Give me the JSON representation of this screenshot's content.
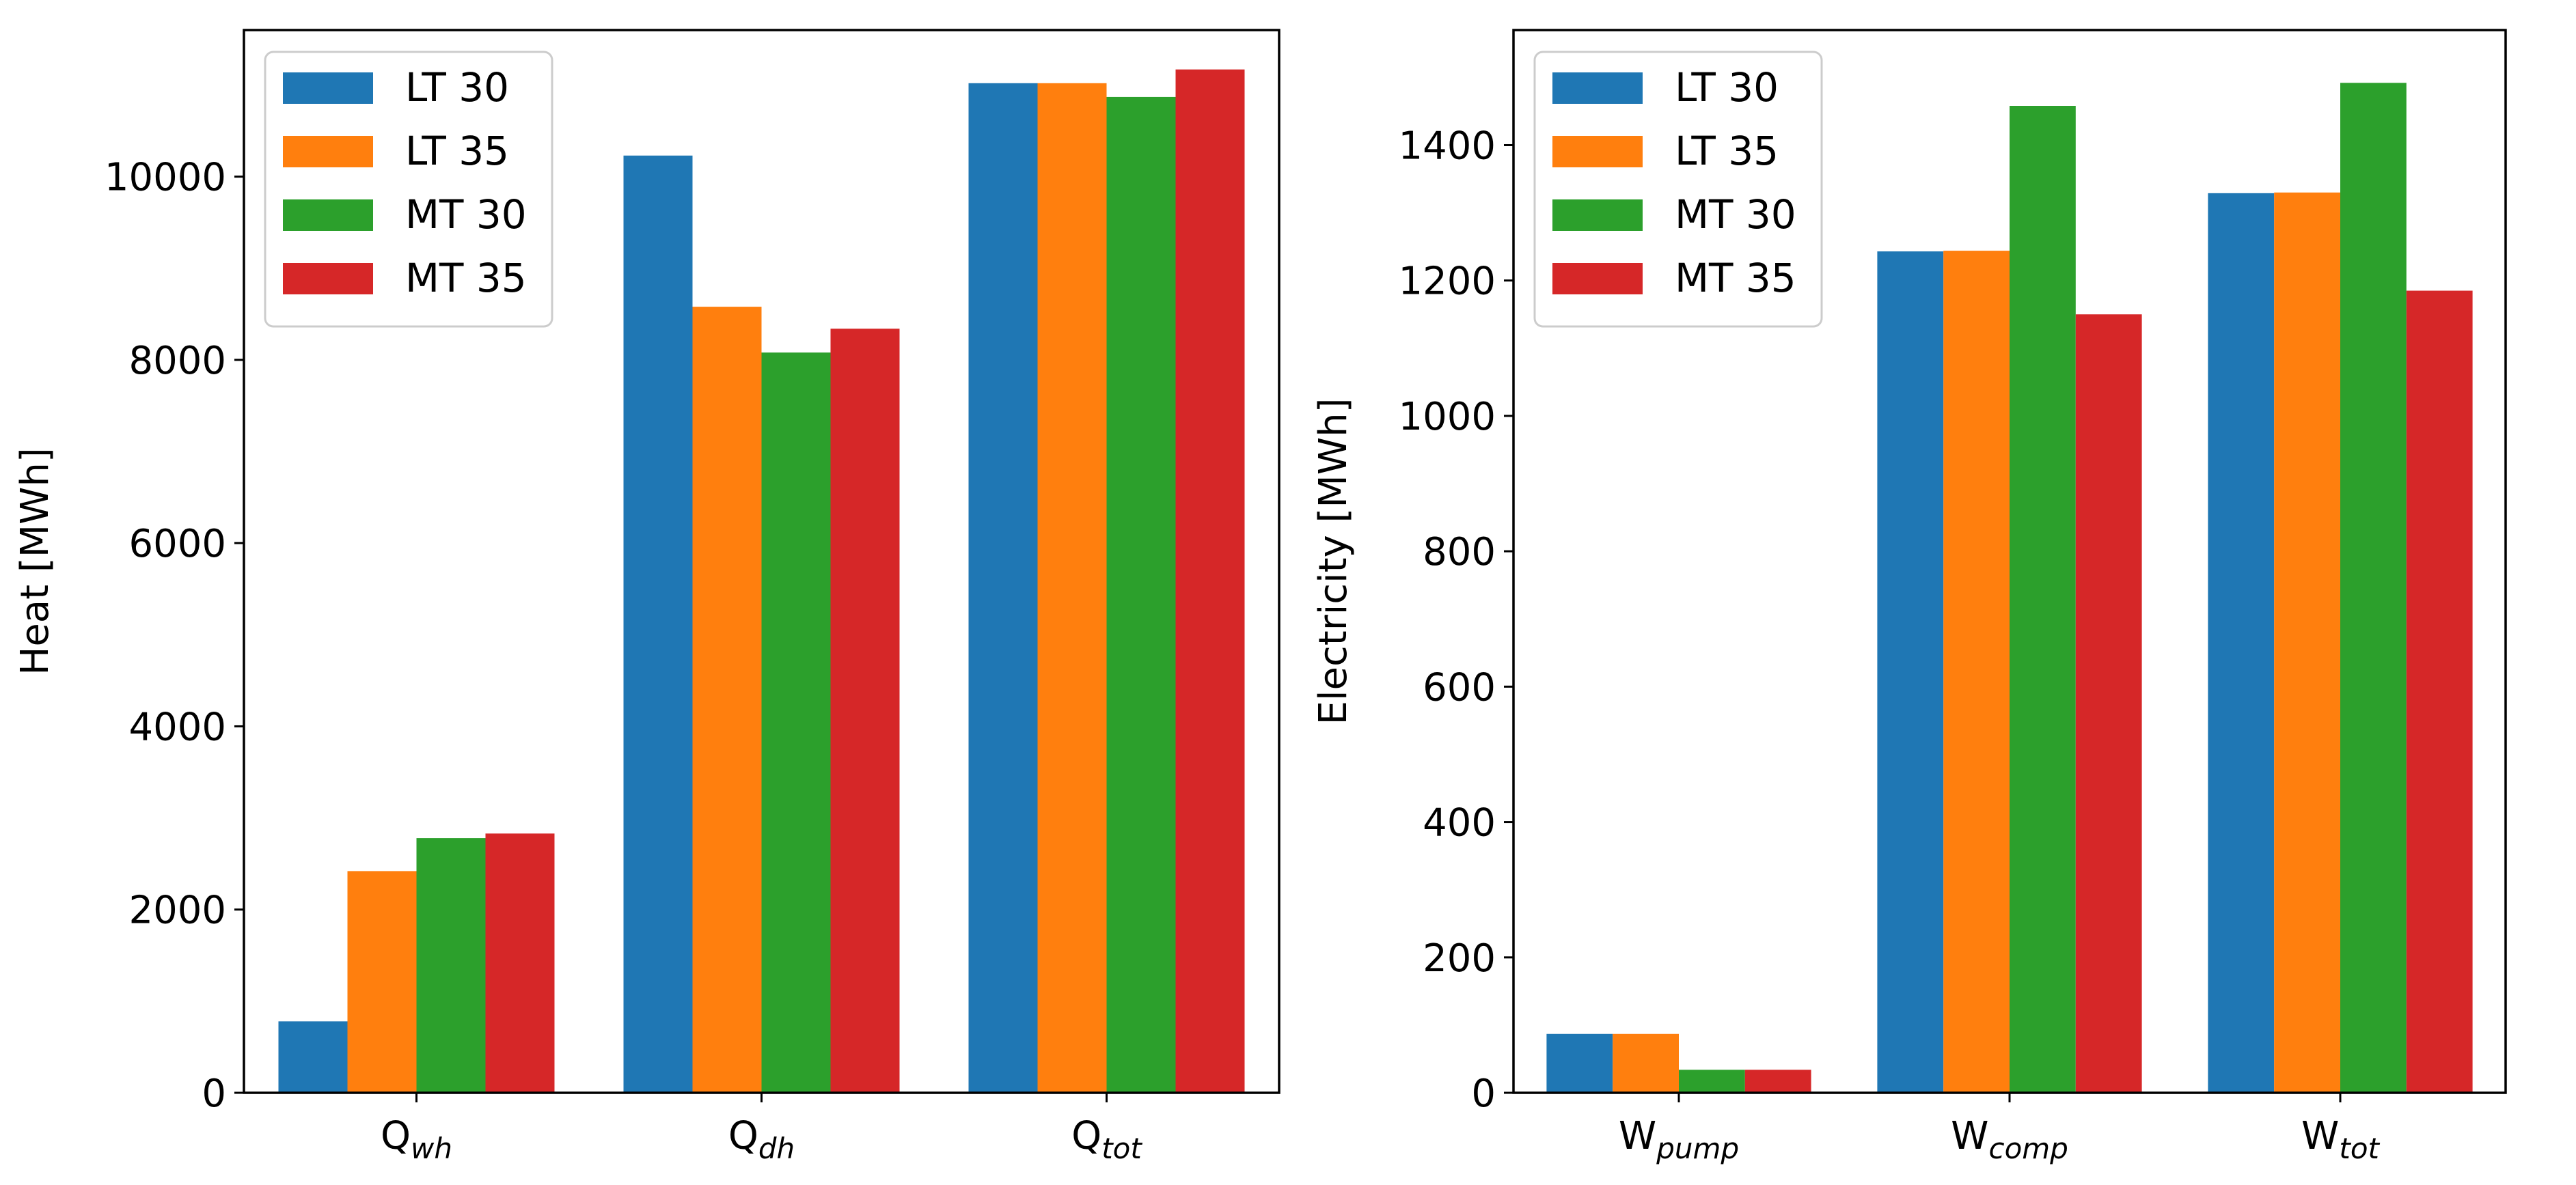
{
  "chart_data": [
    {
      "type": "bar",
      "title": "",
      "xlabel": "",
      "ylabel": "Heat [MWh]",
      "ylim": [
        0,
        11600
      ],
      "yticks": [
        0,
        2000,
        4000,
        6000,
        8000,
        10000
      ],
      "categories": [
        {
          "base": "Q",
          "sub": "wh"
        },
        {
          "base": "Q",
          "sub": "dh"
        },
        {
          "base": "Q",
          "sub": "tot"
        }
      ],
      "series": [
        {
          "name": "LT 30",
          "color": "#1f77b4",
          "values": [
            780,
            10230,
            11020
          ]
        },
        {
          "name": "LT 35",
          "color": "#ff7f0e",
          "values": [
            2420,
            8580,
            11020
          ]
        },
        {
          "name": "MT 30",
          "color": "#2ca02c",
          "values": [
            2780,
            8080,
            10870
          ]
        },
        {
          "name": "MT 35",
          "color": "#d62728",
          "values": [
            2830,
            8340,
            11170
          ]
        }
      ],
      "legend_position": "top-left"
    },
    {
      "type": "bar",
      "title": "",
      "xlabel": "",
      "ylabel": "Electricity [MWh]",
      "ylim": [
        0,
        1570
      ],
      "yticks": [
        0,
        200,
        400,
        600,
        800,
        1000,
        1200,
        1400
      ],
      "categories": [
        {
          "base": "W",
          "sub": "pump"
        },
        {
          "base": "W",
          "sub": "comp"
        },
        {
          "base": "W",
          "sub": "tot"
        }
      ],
      "series": [
        {
          "name": "LT 30",
          "color": "#1f77b4",
          "values": [
            87,
            1243,
            1329
          ]
        },
        {
          "name": "LT 35",
          "color": "#ff7f0e",
          "values": [
            87,
            1244,
            1330
          ]
        },
        {
          "name": "MT 30",
          "color": "#2ca02c",
          "values": [
            34,
            1458,
            1492
          ]
        },
        {
          "name": "MT 35",
          "color": "#d62728",
          "values": [
            34,
            1150,
            1185
          ]
        }
      ],
      "legend_position": "top-left"
    }
  ]
}
